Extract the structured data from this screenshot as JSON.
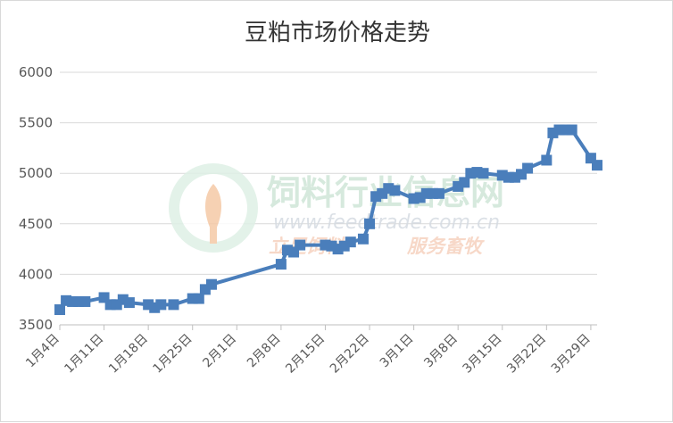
{
  "chart_data": {
    "type": "line",
    "title": "豆粕市场价格走势",
    "xlabel": "",
    "ylabel": "",
    "ylim": [
      3500,
      6000
    ],
    "yticks": [
      3500,
      4000,
      4500,
      5000,
      5500,
      6000
    ],
    "xlim": [
      "1月4日",
      "3月30日"
    ],
    "xtick_labels": [
      "1月4日",
      "1月11日",
      "1月18日",
      "1月25日",
      "2月1日",
      "2月8日",
      "2月15日",
      "2月22日",
      "3月1日",
      "3月8日",
      "3月15日",
      "3月22日",
      "3月29日"
    ],
    "grid": true,
    "legend": "none",
    "color": "#4a7ebb",
    "x": [
      "1月4日",
      "1月5日",
      "1月6日",
      "1月7日",
      "1月8日",
      "1月11日",
      "1月12日",
      "1月13日",
      "1月14日",
      "1月15日",
      "1月18日",
      "1月19日",
      "1月20日",
      "1月22日",
      "1月25日",
      "1月26日",
      "1月27日",
      "1月28日",
      "2月8日",
      "2月9日",
      "2月10日",
      "2月11日",
      "2月15日",
      "2月16日",
      "2月17日",
      "2月18日",
      "2月19日",
      "2月21日",
      "2月22日",
      "2月23日",
      "2月24日",
      "2月25日",
      "2月26日",
      "3月1日",
      "3月2日",
      "3月3日",
      "3月4日",
      "3月5日",
      "3月8日",
      "3月9日",
      "3月10日",
      "3月11日",
      "3月12日",
      "3月15日",
      "3月16日",
      "3月17日",
      "3月18日",
      "3月19日",
      "3月22日",
      "3月23日",
      "3月24日",
      "3月25日",
      "3月26日",
      "3月29日",
      "3月30日"
    ],
    "values": [
      3650,
      3740,
      3730,
      3730,
      3730,
      3770,
      3700,
      3700,
      3750,
      3720,
      3700,
      3670,
      3700,
      3700,
      3760,
      3760,
      3850,
      3900,
      4100,
      4240,
      4220,
      4290,
      4290,
      4280,
      4250,
      4280,
      4320,
      4350,
      4500,
      4770,
      4800,
      4850,
      4830,
      4750,
      4760,
      4800,
      4800,
      4800,
      4870,
      4910,
      5000,
      5010,
      5000,
      4980,
      4960,
      4960,
      4990,
      5050,
      5130,
      5400,
      5430,
      5430,
      5430,
      5150,
      5080
    ]
  },
  "watermark": {
    "name": "饲料行业信息网",
    "url": "www.feedtrade.com.cn",
    "slogan_left": "立足饲料",
    "slogan_right": "服务畜牧"
  }
}
